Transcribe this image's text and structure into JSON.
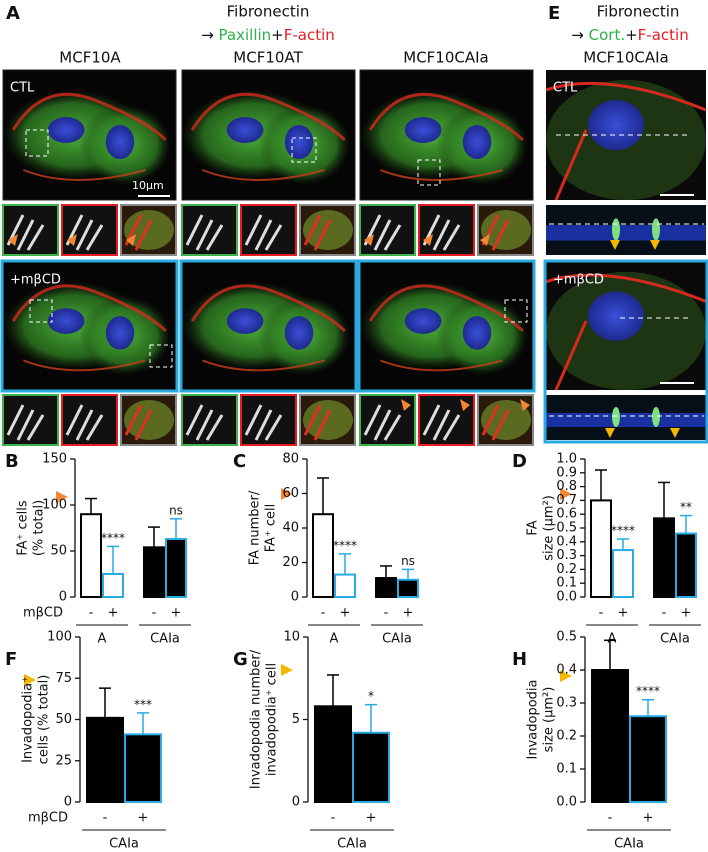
{
  "figure": {
    "panel_a": {
      "letter": "A",
      "title": "Fibronectin",
      "arrow": "→",
      "stain_1": "Paxillin",
      "plus": "+",
      "stain_2": "F-actin",
      "columns": [
        "MCF10A",
        "MCF10AT",
        "MCF10CAIa"
      ],
      "control": "CTL",
      "treated": "+mβCD",
      "scale": "10μm"
    },
    "panel_e": {
      "letter": "E",
      "title": "Fibronectin",
      "arrow": "→",
      "stain_1": "Cort.",
      "plus": "+",
      "stain_2": "F-actin",
      "column": "MCF10CAIa",
      "control": "CTL",
      "treated": "+mβCD"
    }
  },
  "chart_data": [
    {
      "type": "bar",
      "panel": "B",
      "ylabel": [
        "FA⁺ cells",
        "(% total)"
      ],
      "categories": [
        "-",
        "+",
        "-",
        "+"
      ],
      "groups": [
        "A",
        "CAIa"
      ],
      "treatment_label": "mβCD",
      "values": [
        90,
        25,
        54,
        63
      ],
      "errors": [
        17,
        30,
        22,
        22
      ],
      "significance": [
        null,
        "****",
        null,
        "ns"
      ],
      "colors": [
        "#ffffff",
        "#ffffff",
        "#000000",
        "#000000"
      ],
      "edge_colors": [
        "#000000",
        "#29abe2",
        "#000000",
        "#29abe2"
      ],
      "marker_color": "#f58634",
      "ylim": [
        0,
        150
      ],
      "yticks": [
        0,
        50,
        100,
        150
      ]
    },
    {
      "type": "bar",
      "panel": "C",
      "ylabel": [
        "FA number/",
        "FA⁺ cell"
      ],
      "categories": [
        "-",
        "+",
        "-",
        "+"
      ],
      "groups": [
        "A",
        "CAIa"
      ],
      "values": [
        48,
        13,
        11,
        10
      ],
      "errors": [
        21,
        12,
        7,
        6
      ],
      "significance": [
        null,
        "****",
        null,
        "ns"
      ],
      "colors": [
        "#ffffff",
        "#ffffff",
        "#000000",
        "#000000"
      ],
      "edge_colors": [
        "#000000",
        "#29abe2",
        "#000000",
        "#29abe2"
      ],
      "marker_color": "#f58634",
      "ylim": [
        0,
        80
      ],
      "yticks": [
        0,
        20,
        40,
        60,
        80
      ]
    },
    {
      "type": "bar",
      "panel": "D",
      "ylabel": [
        "FA",
        "size (μm²)"
      ],
      "categories": [
        "-",
        "+",
        "-",
        "+"
      ],
      "groups": [
        "A",
        "CAIa"
      ],
      "values": [
        0.7,
        0.34,
        0.57,
        0.46
      ],
      "errors": [
        0.22,
        0.08,
        0.26,
        0.13
      ],
      "significance": [
        null,
        "****",
        null,
        "**"
      ],
      "colors": [
        "#ffffff",
        "#ffffff",
        "#000000",
        "#000000"
      ],
      "edge_colors": [
        "#000000",
        "#29abe2",
        "#000000",
        "#29abe2"
      ],
      "marker_color": "#f58634",
      "ylim": [
        0,
        1
      ],
      "yticks": [
        {
          "value": 0,
          "label": "0.0"
        },
        0.1,
        0.2,
        0.3,
        0.4,
        0.5,
        0.6,
        0.7,
        0.8,
        0.9,
        {
          "value": 1,
          "label": "1.0"
        }
      ]
    },
    {
      "type": "bar",
      "panel": "F",
      "ylabel": [
        "Invadopodia⁺",
        "cells (% total)"
      ],
      "categories": [
        "-",
        "+"
      ],
      "groups": [
        "CAIa"
      ],
      "treatment_label": "mβCD",
      "values": [
        51,
        41
      ],
      "errors": [
        18,
        13
      ],
      "significance": [
        null,
        "***"
      ],
      "colors": [
        "#000000",
        "#000000"
      ],
      "edge_colors": [
        "#000000",
        "#29abe2"
      ],
      "marker_color": "#f5b800",
      "ylim": [
        0,
        100
      ],
      "yticks": [
        0,
        25,
        50,
        75,
        100
      ]
    },
    {
      "type": "bar",
      "panel": "G",
      "ylabel": [
        "Invadopodia number/",
        "invadopodia⁺ cell"
      ],
      "categories": [
        "-",
        "+"
      ],
      "groups": [
        "CAIa"
      ],
      "values": [
        5.8,
        4.2
      ],
      "errors": [
        1.9,
        1.7
      ],
      "significance": [
        null,
        "*"
      ],
      "colors": [
        "#000000",
        "#000000"
      ],
      "edge_colors": [
        "#000000",
        "#29abe2"
      ],
      "marker_color": "#f5b800",
      "ylim": [
        0,
        10
      ],
      "yticks": [
        0,
        5,
        10
      ]
    },
    {
      "type": "bar",
      "panel": "H",
      "ylabel": [
        "Invadopodia",
        "size (μm²)"
      ],
      "categories": [
        "-",
        "+"
      ],
      "groups": [
        "CAIa"
      ],
      "values": [
        0.4,
        0.26
      ],
      "errors": [
        0.09,
        0.05
      ],
      "significance": [
        null,
        "****"
      ],
      "colors": [
        "#000000",
        "#000000"
      ],
      "edge_colors": [
        "#000000",
        "#29abe2"
      ],
      "marker_color": "#f5b800",
      "ylim": [
        0,
        0.5
      ],
      "yticks": [
        {
          "value": 0,
          "label": "0.0"
        },
        0.1,
        0.2,
        0.3,
        0.4,
        0.5
      ]
    }
  ]
}
